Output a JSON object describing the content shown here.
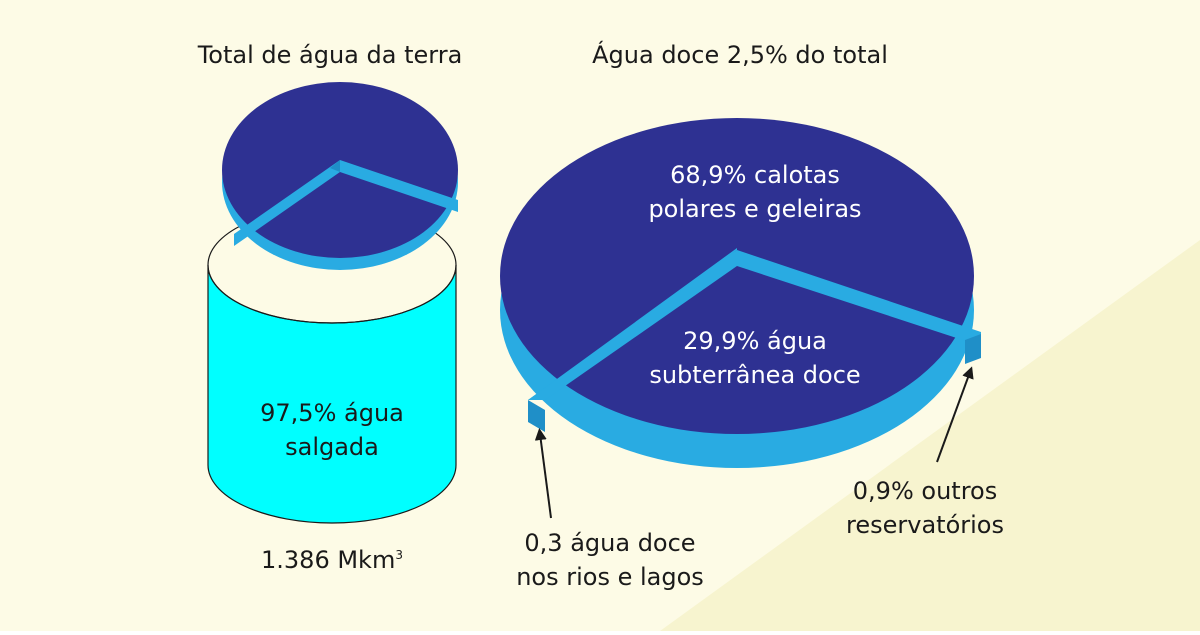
{
  "colors": {
    "background_light": "#fdfbe6",
    "background_diagonal": "#f7f4cf",
    "navy": "#2e3192",
    "edge_blue": "#29abe2",
    "cyan": "#00ffff",
    "text_dark": "#1a1a1a",
    "text_light": "#ffffff"
  },
  "left": {
    "title": "Total de água da terra",
    "label_line1": "97,5% água",
    "label_line2": "salgada",
    "volume_value": "1.386 Mkm",
    "volume_exp": "3"
  },
  "right": {
    "title": "Água doce 2,5% do total",
    "slice_big_line1": "68,9% calotas",
    "slice_big_line2": "polares e geleiras",
    "slice_mid_line1": "29,9% água",
    "slice_mid_line2": "subterrânea doce",
    "note_rivers_line1": "0,3 água doce",
    "note_rivers_line2": "nos rios e lagos",
    "note_other_line1": "0,9% outros",
    "note_other_line2": "reservatórios"
  },
  "chart_data": [
    {
      "type": "pie",
      "title": "Total de água da terra",
      "total": "1.386 Mkm3",
      "slices": [
        {
          "label": "salgada",
          "value": 97.5
        },
        {
          "label": "doce",
          "value": 2.5
        }
      ]
    },
    {
      "type": "pie",
      "title": "Água doce 2,5% do total",
      "slices": [
        {
          "label": "calotas polares e geleiras",
          "value": 68.9
        },
        {
          "label": "água subterrânea doce",
          "value": 29.9
        },
        {
          "label": "outros reservatórios",
          "value": 0.9
        },
        {
          "label": "água doce nos rios e lagos",
          "value": 0.3
        }
      ]
    }
  ]
}
